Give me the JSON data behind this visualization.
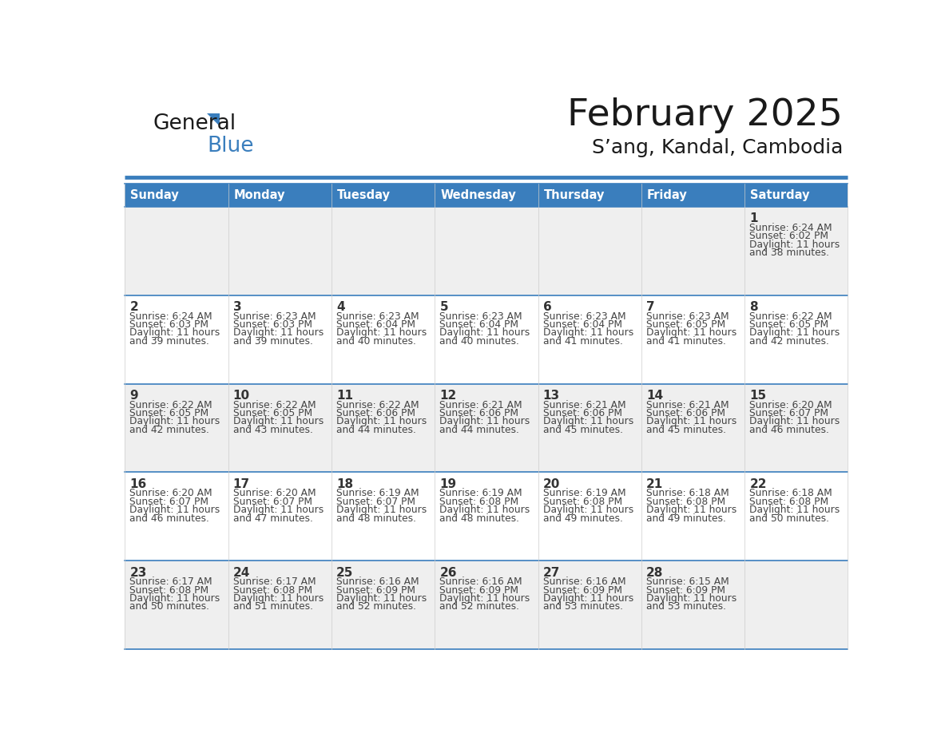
{
  "title": "February 2025",
  "subtitle": "S’ang, Kandal, Cambodia",
  "days_of_week": [
    "Sunday",
    "Monday",
    "Tuesday",
    "Wednesday",
    "Thursday",
    "Friday",
    "Saturday"
  ],
  "header_bg": "#3A7EBD",
  "header_text": "#FFFFFF",
  "row_bg_odd": "#EFEFEF",
  "row_bg_even": "#FFFFFF",
  "border_color": "#3A7EBD",
  "day_number_color": "#333333",
  "info_text_color": "#444444",
  "calendar_data": [
    [
      null,
      null,
      null,
      null,
      null,
      null,
      {
        "day": 1,
        "sunrise": "6:24 AM",
        "sunset": "6:02 PM",
        "daylight_h": "11 hours",
        "daylight_m": "and 38 minutes."
      }
    ],
    [
      {
        "day": 2,
        "sunrise": "6:24 AM",
        "sunset": "6:03 PM",
        "daylight_h": "11 hours",
        "daylight_m": "and 39 minutes."
      },
      {
        "day": 3,
        "sunrise": "6:23 AM",
        "sunset": "6:03 PM",
        "daylight_h": "11 hours",
        "daylight_m": "and 39 minutes."
      },
      {
        "day": 4,
        "sunrise": "6:23 AM",
        "sunset": "6:04 PM",
        "daylight_h": "11 hours",
        "daylight_m": "and 40 minutes."
      },
      {
        "day": 5,
        "sunrise": "6:23 AM",
        "sunset": "6:04 PM",
        "daylight_h": "11 hours",
        "daylight_m": "and 40 minutes."
      },
      {
        "day": 6,
        "sunrise": "6:23 AM",
        "sunset": "6:04 PM",
        "daylight_h": "11 hours",
        "daylight_m": "and 41 minutes."
      },
      {
        "day": 7,
        "sunrise": "6:23 AM",
        "sunset": "6:05 PM",
        "daylight_h": "11 hours",
        "daylight_m": "and 41 minutes."
      },
      {
        "day": 8,
        "sunrise": "6:22 AM",
        "sunset": "6:05 PM",
        "daylight_h": "11 hours",
        "daylight_m": "and 42 minutes."
      }
    ],
    [
      {
        "day": 9,
        "sunrise": "6:22 AM",
        "sunset": "6:05 PM",
        "daylight_h": "11 hours",
        "daylight_m": "and 42 minutes."
      },
      {
        "day": 10,
        "sunrise": "6:22 AM",
        "sunset": "6:05 PM",
        "daylight_h": "11 hours",
        "daylight_m": "and 43 minutes."
      },
      {
        "day": 11,
        "sunrise": "6:22 AM",
        "sunset": "6:06 PM",
        "daylight_h": "11 hours",
        "daylight_m": "and 44 minutes."
      },
      {
        "day": 12,
        "sunrise": "6:21 AM",
        "sunset": "6:06 PM",
        "daylight_h": "11 hours",
        "daylight_m": "and 44 minutes."
      },
      {
        "day": 13,
        "sunrise": "6:21 AM",
        "sunset": "6:06 PM",
        "daylight_h": "11 hours",
        "daylight_m": "and 45 minutes."
      },
      {
        "day": 14,
        "sunrise": "6:21 AM",
        "sunset": "6:06 PM",
        "daylight_h": "11 hours",
        "daylight_m": "and 45 minutes."
      },
      {
        "day": 15,
        "sunrise": "6:20 AM",
        "sunset": "6:07 PM",
        "daylight_h": "11 hours",
        "daylight_m": "and 46 minutes."
      }
    ],
    [
      {
        "day": 16,
        "sunrise": "6:20 AM",
        "sunset": "6:07 PM",
        "daylight_h": "11 hours",
        "daylight_m": "and 46 minutes."
      },
      {
        "day": 17,
        "sunrise": "6:20 AM",
        "sunset": "6:07 PM",
        "daylight_h": "11 hours",
        "daylight_m": "and 47 minutes."
      },
      {
        "day": 18,
        "sunrise": "6:19 AM",
        "sunset": "6:07 PM",
        "daylight_h": "11 hours",
        "daylight_m": "and 48 minutes."
      },
      {
        "day": 19,
        "sunrise": "6:19 AM",
        "sunset": "6:08 PM",
        "daylight_h": "11 hours",
        "daylight_m": "and 48 minutes."
      },
      {
        "day": 20,
        "sunrise": "6:19 AM",
        "sunset": "6:08 PM",
        "daylight_h": "11 hours",
        "daylight_m": "and 49 minutes."
      },
      {
        "day": 21,
        "sunrise": "6:18 AM",
        "sunset": "6:08 PM",
        "daylight_h": "11 hours",
        "daylight_m": "and 49 minutes."
      },
      {
        "day": 22,
        "sunrise": "6:18 AM",
        "sunset": "6:08 PM",
        "daylight_h": "11 hours",
        "daylight_m": "and 50 minutes."
      }
    ],
    [
      {
        "day": 23,
        "sunrise": "6:17 AM",
        "sunset": "6:08 PM",
        "daylight_h": "11 hours",
        "daylight_m": "and 50 minutes."
      },
      {
        "day": 24,
        "sunrise": "6:17 AM",
        "sunset": "6:08 PM",
        "daylight_h": "11 hours",
        "daylight_m": "and 51 minutes."
      },
      {
        "day": 25,
        "sunrise": "6:16 AM",
        "sunset": "6:09 PM",
        "daylight_h": "11 hours",
        "daylight_m": "and 52 minutes."
      },
      {
        "day": 26,
        "sunrise": "6:16 AM",
        "sunset": "6:09 PM",
        "daylight_h": "11 hours",
        "daylight_m": "and 52 minutes."
      },
      {
        "day": 27,
        "sunrise": "6:16 AM",
        "sunset": "6:09 PM",
        "daylight_h": "11 hours",
        "daylight_m": "and 53 minutes."
      },
      {
        "day": 28,
        "sunrise": "6:15 AM",
        "sunset": "6:09 PM",
        "daylight_h": "11 hours",
        "daylight_m": "and 53 minutes."
      },
      null
    ]
  ],
  "logo_general_color": "#1A1A1A",
  "logo_blue_color": "#3A7EBD",
  "logo_triangle_color": "#3A7EBD"
}
